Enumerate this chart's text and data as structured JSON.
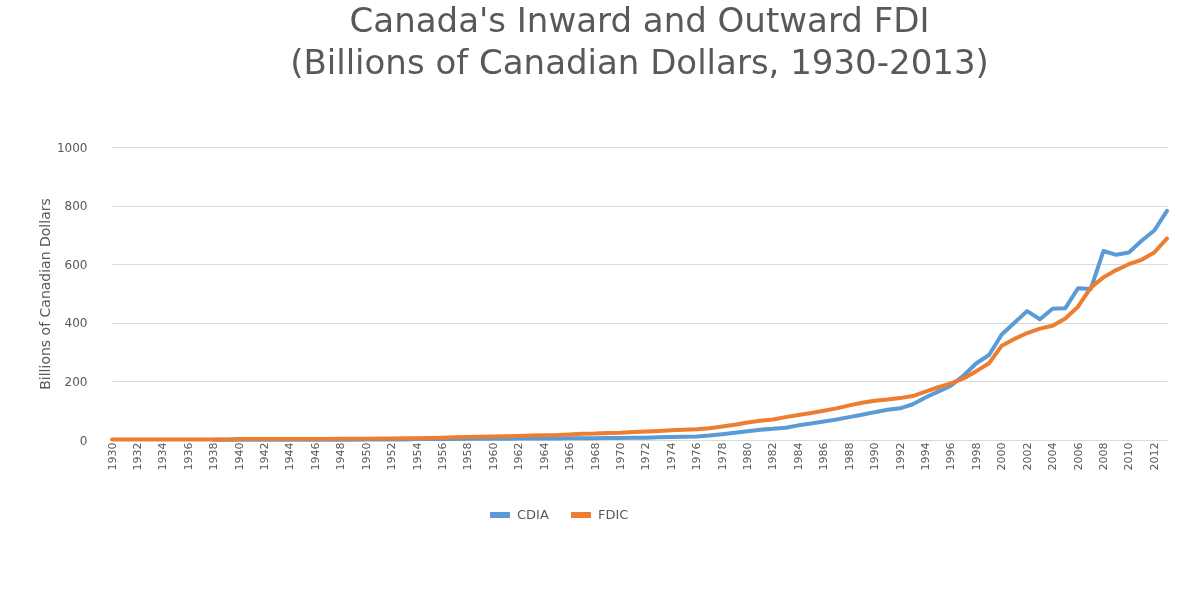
{
  "chart_data": {
    "type": "line",
    "title": "Canada's Inward and Outward FDI",
    "subtitle": "(Billions of Canadian Dollars, 1930-2013)",
    "ylabel": "Billions of Canadian Dollars",
    "x": [
      1930,
      1931,
      1932,
      1933,
      1934,
      1935,
      1936,
      1937,
      1938,
      1939,
      1940,
      1941,
      1942,
      1943,
      1944,
      1945,
      1946,
      1947,
      1948,
      1949,
      1950,
      1951,
      1952,
      1953,
      1954,
      1955,
      1956,
      1957,
      1958,
      1959,
      1960,
      1961,
      1962,
      1963,
      1964,
      1965,
      1966,
      1967,
      1968,
      1969,
      1970,
      1971,
      1972,
      1973,
      1974,
      1975,
      1976,
      1977,
      1978,
      1979,
      1980,
      1981,
      1982,
      1983,
      1984,
      1985,
      1986,
      1987,
      1988,
      1989,
      1990,
      1991,
      1992,
      1993,
      1994,
      1995,
      1996,
      1997,
      1998,
      1999,
      2000,
      2001,
      2002,
      2003,
      2004,
      2005,
      2006,
      2007,
      2008,
      2009,
      2010,
      2011,
      2012,
      2013
    ],
    "series": [
      {
        "name": "CDIA",
        "color": "#5b9bd5",
        "values": [
          null,
          null,
          null,
          null,
          null,
          null,
          null,
          null,
          1,
          1,
          1,
          1,
          1,
          1,
          1,
          1,
          1,
          1,
          1,
          1,
          2,
          2,
          2,
          2,
          3,
          3,
          3,
          3,
          4,
          4,
          4,
          4,
          5,
          5,
          5,
          5,
          6,
          6,
          6,
          7,
          7,
          8,
          8,
          9,
          10,
          11,
          12,
          15,
          20,
          25,
          30,
          35,
          38,
          42,
          50,
          56,
          63,
          70,
          78,
          86,
          95,
          103,
          108,
          122,
          145,
          165,
          185,
          220,
          262,
          290,
          360,
          400,
          440,
          412,
          448,
          450,
          518,
          515,
          645,
          632,
          640,
          680,
          715,
          782
        ]
      },
      {
        "name": "FDIC",
        "color": "#ed7d31",
        "values": [
          2,
          2,
          2,
          2,
          2,
          2,
          2,
          2,
          2,
          2,
          3,
          3,
          3,
          3,
          3,
          3,
          3,
          3,
          4,
          4,
          4,
          5,
          5,
          6,
          6,
          7,
          8,
          9,
          10,
          11,
          12,
          13,
          14,
          15,
          16,
          17,
          19,
          21,
          22,
          24,
          25,
          27,
          29,
          31,
          33,
          35,
          37,
          40,
          46,
          52,
          60,
          66,
          70,
          78,
          85,
          92,
          100,
          108,
          118,
          127,
          134,
          138,
          143,
          150,
          165,
          180,
          193,
          210,
          235,
          262,
          322,
          345,
          365,
          380,
          390,
          415,
          455,
          520,
          555,
          580,
          600,
          615,
          640,
          688
        ]
      }
    ],
    "xlim": [
      1930,
      2013
    ],
    "xticks": [
      1930,
      1932,
      1934,
      1936,
      1938,
      1940,
      1942,
      1944,
      1946,
      1948,
      1950,
      1952,
      1954,
      1956,
      1958,
      1960,
      1962,
      1964,
      1966,
      1968,
      1970,
      1972,
      1974,
      1976,
      1978,
      1980,
      1982,
      1984,
      1986,
      1988,
      1990,
      1992,
      1994,
      1996,
      1998,
      2000,
      2002,
      2004,
      2006,
      2008,
      2010,
      2012
    ],
    "ylim": [
      0,
      1000
    ],
    "yticks": [
      0,
      200,
      400,
      600,
      800,
      1000
    ],
    "grid": "y",
    "legend": "bottom",
    "marker": "none",
    "line_style": "solid"
  }
}
